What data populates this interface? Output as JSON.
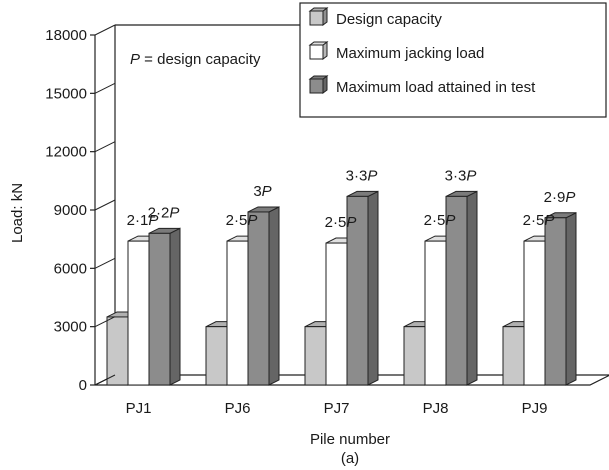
{
  "chart_data": {
    "type": "bar",
    "style": "3d-clustered",
    "categories": [
      "PJ1",
      "PJ6",
      "PJ7",
      "PJ8",
      "PJ9"
    ],
    "series": [
      {
        "name": "Design capacity",
        "values": [
          3500,
          3000,
          3000,
          3000,
          3000
        ],
        "labels": [
          "",
          "",
          "",
          "",
          ""
        ],
        "color": "#c8c8c8"
      },
      {
        "name": "Maximum jacking load",
        "values": [
          7400,
          7400,
          7300,
          7400,
          7400
        ],
        "labels": [
          "2·1P",
          "2·5P",
          "2·5P",
          "2·5P",
          "2·5P"
        ],
        "color": "#ffffff"
      },
      {
        "name": "Maximum load attained in test",
        "values": [
          7800,
          8900,
          9700,
          9700,
          8600
        ],
        "labels": [
          "2·2P",
          "3P",
          "3·3P",
          "3·3P",
          "2·9P"
        ],
        "color": "#8c8c8c"
      }
    ],
    "ylabel": "Load: kN",
    "xlabel": "Pile number",
    "caption": "(a)",
    "annotation": "P = design capacity",
    "ylim": [
      0,
      18000
    ],
    "yticks": [
      0,
      3000,
      6000,
      9000,
      12000,
      15000,
      18000
    ],
    "legend_position": "top-right",
    "grid": false
  }
}
